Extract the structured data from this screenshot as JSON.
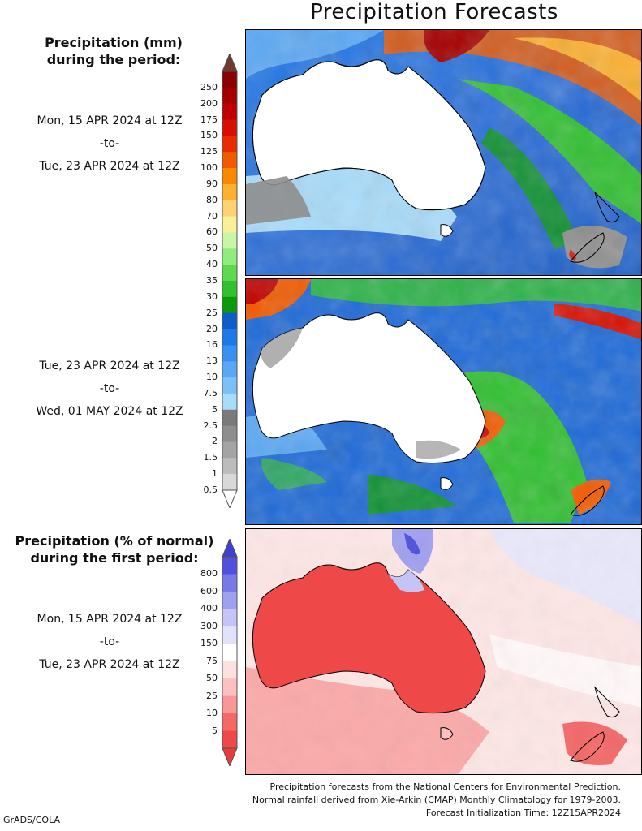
{
  "title": "Precipitation Forecasts",
  "section1": {
    "heading_line1": "Precipitation (mm)",
    "heading_line2": "during the period:"
  },
  "period1": {
    "start": "Mon, 15 APR 2024 at 12Z",
    "to": "-to-",
    "end": "Tue, 23 APR 2024 at 12Z"
  },
  "period2": {
    "start": "Tue, 23 APR 2024 at 12Z",
    "to": "-to-",
    "end": "Wed, 01 MAY 2024 at 12Z"
  },
  "section2": {
    "heading_line1": "Precipitation (% of normal)",
    "heading_line2": "during the first period:"
  },
  "period3": {
    "start": "Mon, 15 APR 2024 at 12Z",
    "to": "-to-",
    "end": "Tue, 23 APR 2024 at 12Z"
  },
  "mm_colorbar": {
    "labels": [
      "250",
      "200",
      "175",
      "150",
      "125",
      "100",
      "90",
      "80",
      "70",
      "60",
      "50",
      "40",
      "35",
      "30",
      "25",
      "20",
      "16",
      "13",
      "10",
      "7.5",
      "5",
      "2.5",
      "2",
      "1.5",
      "1",
      "0.5"
    ],
    "colors": [
      "#8b0000",
      "#a50000",
      "#c00000",
      "#d80e00",
      "#e62c00",
      "#f05a00",
      "#f88a00",
      "#fbb030",
      "#fdd270",
      "#fbee98",
      "#c8f5a8",
      "#90ec7c",
      "#5fd84e",
      "#30c030",
      "#0a9a0a",
      "#105cc8",
      "#1e78e8",
      "#3890f0",
      "#5aa8f5",
      "#7cc0f8",
      "#a8dcfb",
      "#7a7a7a",
      "#8e8e8e",
      "#a4a4a4",
      "#bcbcbc",
      "#d8d8d8"
    ]
  },
  "pct_colorbar": {
    "labels": [
      "800",
      "600",
      "400",
      "300",
      "150",
      "75",
      "50",
      "25",
      "10",
      "5"
    ],
    "colors": [
      "#5050dc",
      "#7878e6",
      "#a0a0f0",
      "#c4c4f6",
      "#e2e2fb",
      "#ffffff",
      "#fde0e0",
      "#fcc0c0",
      "#f99696",
      "#f46868",
      "#ef4848"
    ]
  },
  "footer": {
    "line1": "Precipitation forecasts from the National Centers for Environmental Prediction.",
    "line2": "Normal rainfall derived from Xie-Arkin (CMAP) Monthly Climatology for 1979-2003.",
    "line3": "Forecast Initialization Time: 12Z15APR2024"
  },
  "credit": "GrADS/COLA"
}
